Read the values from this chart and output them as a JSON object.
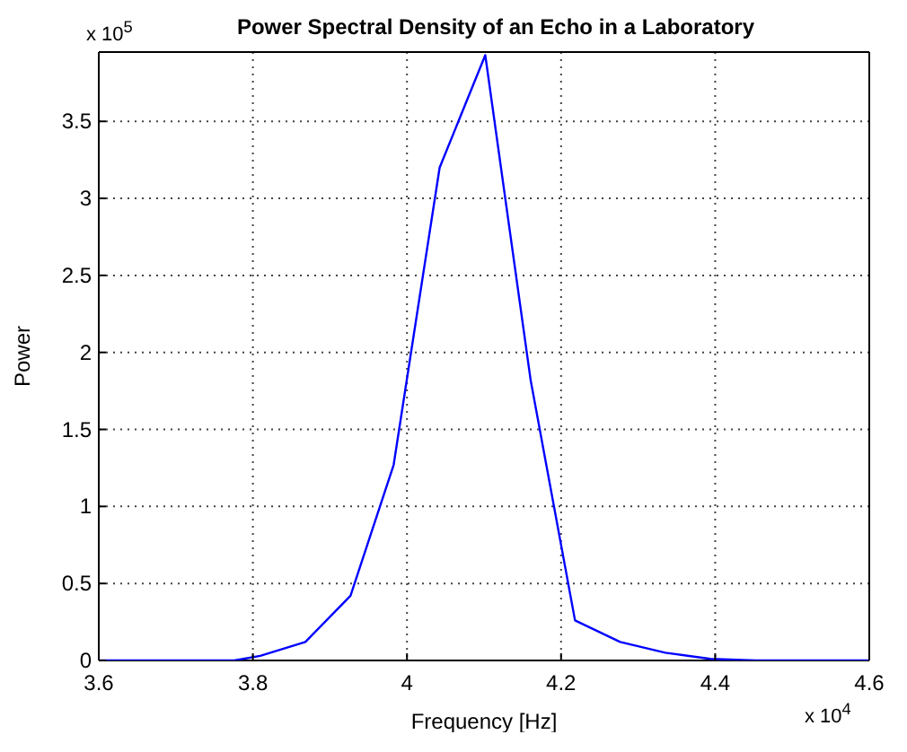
{
  "chart_data": {
    "type": "line",
    "title": "Power Spectral Density of an Echo in a Laboratory",
    "xlabel": "Frequency [Hz]",
    "ylabel": "Power",
    "annotations": [
      "x 10$^{5}$",
      "x 10$^{4}$"
    ],
    "x": [
      3.6,
      3.6586,
      3.7172,
      3.7758,
      3.8095,
      3.8681,
      3.9267,
      3.9827,
      4.0424,
      4.1016,
      4.1605,
      4.2181,
      4.2767,
      4.3353,
      4.3939,
      4.4525,
      4.5111,
      4.5697,
      4.6
    ],
    "series": [
      {
        "color": "#0000ff",
        "values": [
          0,
          0,
          0,
          0,
          0.03,
          0.12,
          0.42,
          1.27,
          3.2,
          3.93,
          1.82,
          0.26,
          0.12,
          0.05,
          0.01,
          0,
          0,
          0,
          0
        ]
      }
    ],
    "xlim": [
      3.6,
      4.6
    ],
    "ylim": [
      0,
      3.95
    ],
    "xticks": [
      3.6,
      3.8,
      4,
      4.2,
      4.4,
      4.6
    ],
    "yticks": [
      0,
      0.5,
      1,
      1.5,
      2,
      2.5,
      3,
      3.5
    ],
    "grid": true,
    "line_style": "solid",
    "marker": "none",
    "legend": false
  }
}
